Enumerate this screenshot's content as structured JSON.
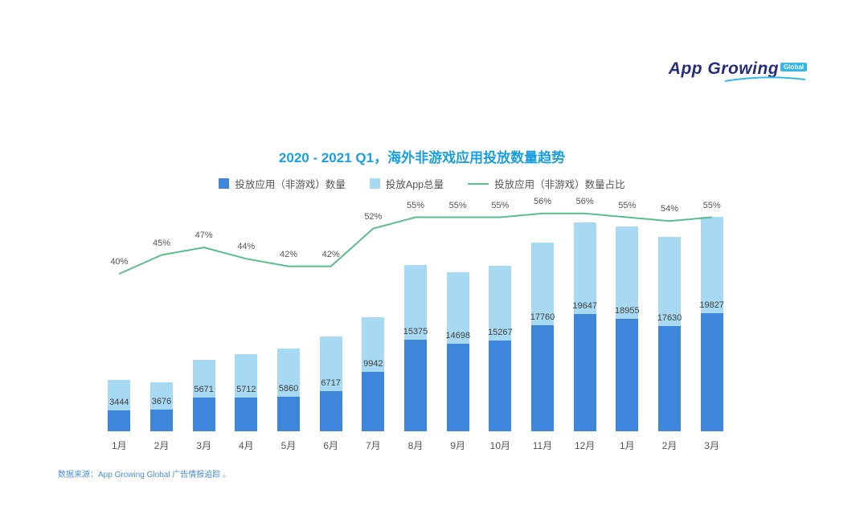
{
  "logo": {
    "text": "App Growing",
    "badge": "Global"
  },
  "chart": {
    "title": "2020 - 2021 Q1，海外非游戏应用投放数量趋势"
  },
  "source": "数据来源：App Growing Global 广告情报追踪 。",
  "chart_data": {
    "type": "bar+line",
    "title": "2020 - 2021 Q1，海外非游戏应用投放数量趋势",
    "categories": [
      "1月",
      "2月",
      "3月",
      "4月",
      "5月",
      "6月",
      "7月",
      "8月",
      "9月",
      "10月",
      "11月",
      "12月",
      "1月",
      "2月",
      "3月"
    ],
    "series": [
      {
        "name": "投放应用（非游戏）数量",
        "type": "bar",
        "color": "#3e86db",
        "values": [
          3444,
          3676,
          5671,
          5712,
          5860,
          6717,
          9942,
          15375,
          14698,
          15267,
          17760,
          19647,
          18955,
          17630,
          19827
        ]
      },
      {
        "name": "投放App总量",
        "type": "bar",
        "color": "#a7daf2",
        "estimated": true,
        "values": [
          8610,
          8169,
          12066,
          12982,
          13952,
          15993,
          19119,
          27954,
          26724,
          27758,
          31714,
          35084,
          34463,
          32648,
          36049
        ]
      },
      {
        "name": "投放应用（非游戏）数量占比",
        "type": "line",
        "color": "#5abe8d",
        "unit": "%",
        "values": [
          40,
          45,
          47,
          44,
          42,
          42,
          52,
          55,
          55,
          55,
          56,
          56,
          55,
          54,
          55
        ]
      }
    ],
    "legend_position": "top",
    "grid": false,
    "axes_visible": false
  }
}
